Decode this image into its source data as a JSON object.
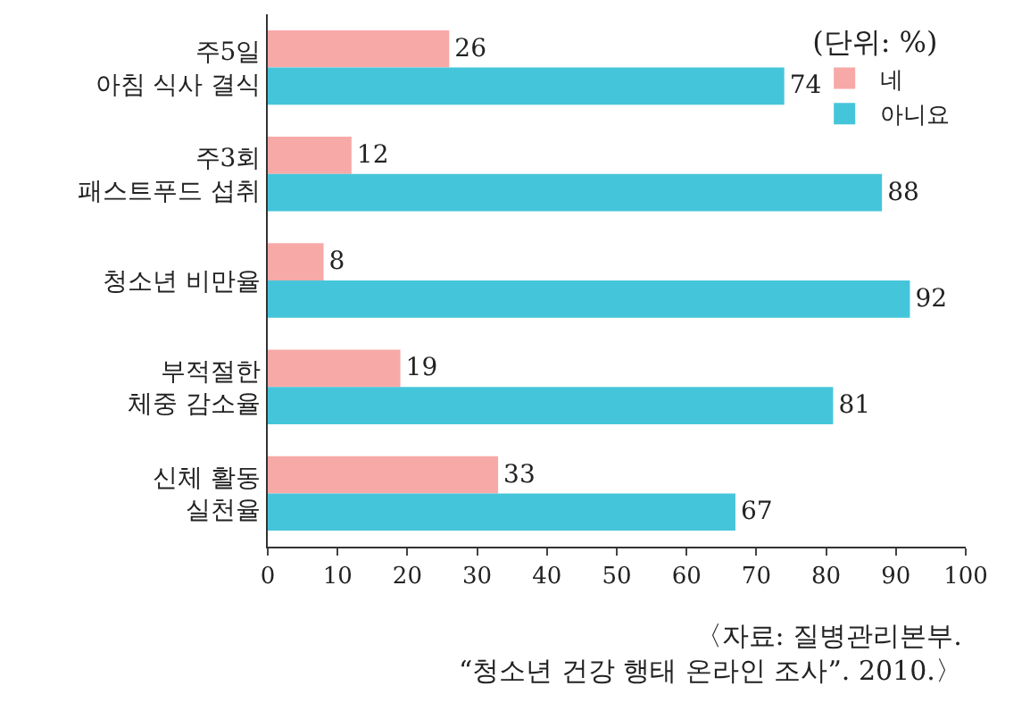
{
  "chart_data": {
    "type": "bar",
    "orientation": "horizontal",
    "categories": [
      "주5일\n아침 식사 결식",
      "주3회\n패스트푸드 섭취",
      "청소년 비만율",
      "부적절한\n체중 감소율",
      "신체 활동\n실천율"
    ],
    "series": [
      {
        "name": "네",
        "color": "#f7a9a8",
        "values": [
          26,
          12,
          8,
          19,
          33
        ]
      },
      {
        "name": "아니요",
        "color": "#45c5da",
        "values": [
          74,
          88,
          92,
          81,
          67
        ]
      }
    ],
    "xlim": [
      0,
      100
    ],
    "xticks": [
      0,
      10,
      20,
      30,
      40,
      50,
      60,
      70,
      80,
      90,
      100
    ],
    "legend_title": "(단위: %)",
    "legend": "top right",
    "data_labels": true,
    "annotations": [
      "〈자료: 질병관리본부.\n“청소년 건강 행태 온라인 조사”. 2010.〉"
    ]
  }
}
